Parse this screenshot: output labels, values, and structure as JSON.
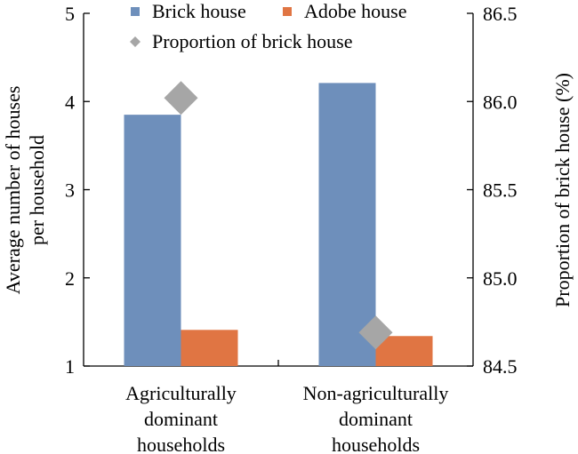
{
  "chart_data": {
    "type": "bar",
    "categories": [
      [
        "Agriculturally",
        "dominant",
        "households"
      ],
      [
        "Non-agriculturally",
        "dominant",
        "households"
      ]
    ],
    "series": [
      {
        "name": "Brick house",
        "values": [
          3.85,
          4.21
        ],
        "color": "#6E8FBB",
        "axis": "left",
        "kind": "bar"
      },
      {
        "name": "Adobe house",
        "values": [
          1.41,
          1.34
        ],
        "color": "#E07543",
        "axis": "left",
        "kind": "bar"
      },
      {
        "name": "Proportion of brick house",
        "values": [
          86.02,
          84.69
        ],
        "color": "#A6A6A6",
        "axis": "right",
        "kind": "marker",
        "marker": "diamond"
      }
    ],
    "ylabel_left": [
      "Average number of houses",
      "per household"
    ],
    "ylabel_right": "Proportion of brick house (%)",
    "ylim_left": [
      1,
      5
    ],
    "ylim_right": [
      84.5,
      86.5
    ],
    "yticks_left": [
      "1",
      "2",
      "3",
      "4",
      "5"
    ],
    "yticks_right": [
      "84.5",
      "85.0",
      "85.5",
      "86.0",
      "86.5"
    ],
    "grid": false,
    "legend_position": "top"
  }
}
